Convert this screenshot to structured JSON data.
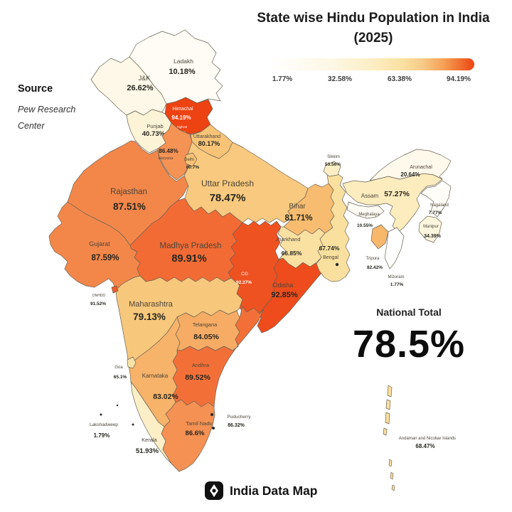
{
  "title": {
    "line1": "State wise Hindu Population in India",
    "line2": "(2025)"
  },
  "legend": {
    "labels": [
      "1.77%",
      "32.58%",
      "63.38%",
      "94.19%"
    ],
    "min": 1.77,
    "max": 94.19,
    "gradient": [
      "#ffffff",
      "#fdf7e4",
      "#fceec4",
      "#fbe0a0",
      "#f8c987",
      "#f5a055",
      "#f07030",
      "#ed4412"
    ]
  },
  "source": {
    "heading": "Source",
    "line1": "Pew Research",
    "line2": "Center"
  },
  "national_total": {
    "label": "National Total",
    "value": "78.5%"
  },
  "footer": {
    "brand": "India Data Map"
  },
  "chart_data": {
    "type": "choropleth_map",
    "region": "India",
    "unit": "percent_hindu_population",
    "states": [
      {
        "name": "Ladakh",
        "value": 10.18,
        "display": "10.18%"
      },
      {
        "name": "J&K",
        "value": 26.62,
        "display": "26.62%"
      },
      {
        "name": "Himachal",
        "value": 94.19,
        "display": "94.19%",
        "note": "Highest State"
      },
      {
        "name": "Punjab",
        "value": 40.73,
        "display": "40.73%"
      },
      {
        "name": "Uttarakhand",
        "value": 80.17,
        "display": "80.17%"
      },
      {
        "name": "Haryana",
        "value": 86.48,
        "display": "86.48%"
      },
      {
        "name": "Delhi",
        "value": 80.7,
        "display": "80.7%"
      },
      {
        "name": "Uttar Pradesh",
        "value": 78.47,
        "display": "78.47%"
      },
      {
        "name": "Rajasthan",
        "value": 87.51,
        "display": "87.51%"
      },
      {
        "name": "Bihar",
        "value": 81.71,
        "display": "81.71%"
      },
      {
        "name": "Sikkim",
        "value": 53.56,
        "display": "53.56%"
      },
      {
        "name": "Bengal",
        "value": 67.74,
        "display": "67.74%"
      },
      {
        "name": "Jharkhand",
        "value": 66.85,
        "display": "66.85%"
      },
      {
        "name": "Assam",
        "value": 57.27,
        "display": "57.27%"
      },
      {
        "name": "Arunachal",
        "value": 20.64,
        "display": "20.64%"
      },
      {
        "name": "Nagaland",
        "value": 7.77,
        "display": "7.77%"
      },
      {
        "name": "Meghalaya",
        "value": 10.55,
        "display": "10.55%"
      },
      {
        "name": "Manipur",
        "value": 34.39,
        "display": "34.39%"
      },
      {
        "name": "Tripura",
        "value": 82.42,
        "display": "82.42%"
      },
      {
        "name": "Mizoram",
        "value": 1.77,
        "display": "1.77%"
      },
      {
        "name": "Gujarat",
        "value": 87.59,
        "display": "87.59%"
      },
      {
        "name": "Madhya Pradesh",
        "value": 89.91,
        "display": "89.91%"
      },
      {
        "name": "DNHDD",
        "value": 91.52,
        "display": "91.52%"
      },
      {
        "name": "CG",
        "value": 92.27,
        "display": "92.27%"
      },
      {
        "name": "Odisha",
        "value": 92.85,
        "display": "92.85%"
      },
      {
        "name": "Maharashtra",
        "value": 79.13,
        "display": "79.13%"
      },
      {
        "name": "Telangana",
        "value": 84.05,
        "display": "84.05%"
      },
      {
        "name": "Andhra",
        "value": 89.52,
        "display": "89.52%"
      },
      {
        "name": "Karnataka",
        "value": 83.02,
        "display": "83.02%"
      },
      {
        "name": "Goa",
        "value": 65.1,
        "display": "65.1%"
      },
      {
        "name": "Kerala",
        "value": 51.93,
        "display": "51.93%"
      },
      {
        "name": "Tamil Nadu",
        "value": 86.6,
        "display": "86.6%"
      },
      {
        "name": "Puducherry",
        "value": 86.32,
        "display": "86.32%"
      },
      {
        "name": "Lakshadweep",
        "value": 1.79,
        "display": "1.79%"
      },
      {
        "name": "Andaman and Nicobar Islands",
        "value": 68.47,
        "display": "68.47%"
      }
    ]
  }
}
